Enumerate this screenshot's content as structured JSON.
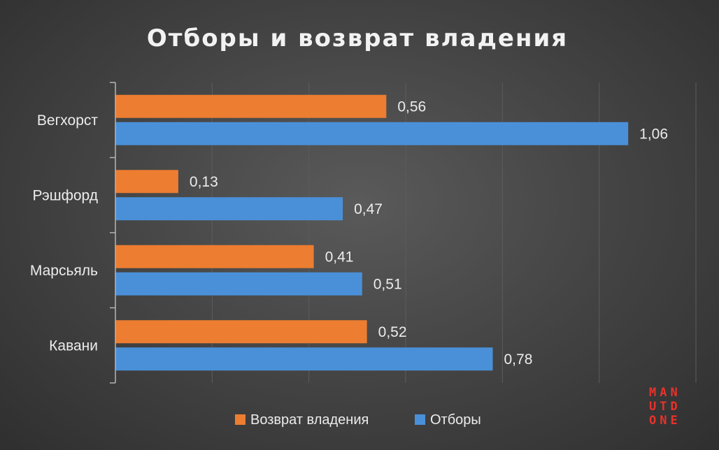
{
  "chart_data": {
    "type": "bar",
    "orientation": "horizontal",
    "title": "Отборы и возврат владения",
    "categories": [
      "Вегхорст",
      "Рэшфорд",
      "Марсьяль",
      "Кавани"
    ],
    "series": [
      {
        "name": "Возврат владения",
        "color": "#ed7d31",
        "values": [
          0.56,
          0.13,
          0.41,
          0.52
        ],
        "labels": [
          "0,56",
          "0,13",
          "0,41",
          "0,52"
        ]
      },
      {
        "name": "Отборы",
        "color": "#4a90d9",
        "values": [
          1.06,
          0.47,
          0.51,
          0.78
        ],
        "labels": [
          "1,06",
          "0,47",
          "0,51",
          "0,78"
        ]
      }
    ],
    "xlim": [
      0,
      1.2
    ],
    "grid": true,
    "legend_position": "bottom"
  },
  "logo": {
    "lines": [
      "MAN",
      "UTD",
      "ONE"
    ]
  }
}
